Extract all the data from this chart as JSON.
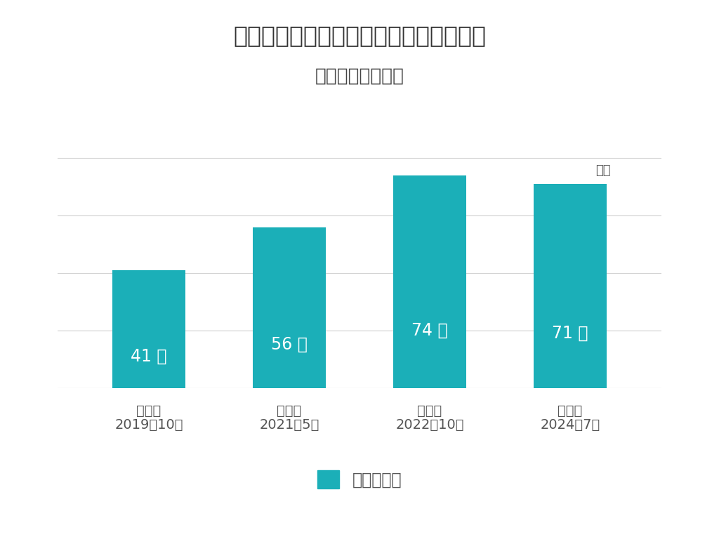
{
  "title": "金継ぎ（きんつぎ）を知っていますか？",
  "subtitle": "調査年月別の推移",
  "categories_line1": [
    "第１回",
    "第２回",
    "第３回",
    "第４回"
  ],
  "categories_line2": [
    "2019年10月",
    "2021年5月",
    "2022年10月",
    "2024年7月"
  ],
  "values": [
    41,
    56,
    74,
    71
  ],
  "bar_color": "#1BAFB8",
  "bar_labels": [
    "41 ％",
    "56 ％",
    "74 ％",
    "71 ％"
  ],
  "annotation_text": "今回",
  "annotation_bar_index": 3,
  "legend_label": "知っている",
  "background_color": "#ffffff",
  "title_fontsize": 24,
  "subtitle_fontsize": 19,
  "label_fontsize": 17,
  "tick_fontsize": 14,
  "legend_fontsize": 17,
  "annotation_fontsize": 13,
  "ylim": [
    0,
    90
  ],
  "grid_color": "#d0d0d0",
  "text_color": "#555555",
  "bar_text_color": "#ffffff"
}
